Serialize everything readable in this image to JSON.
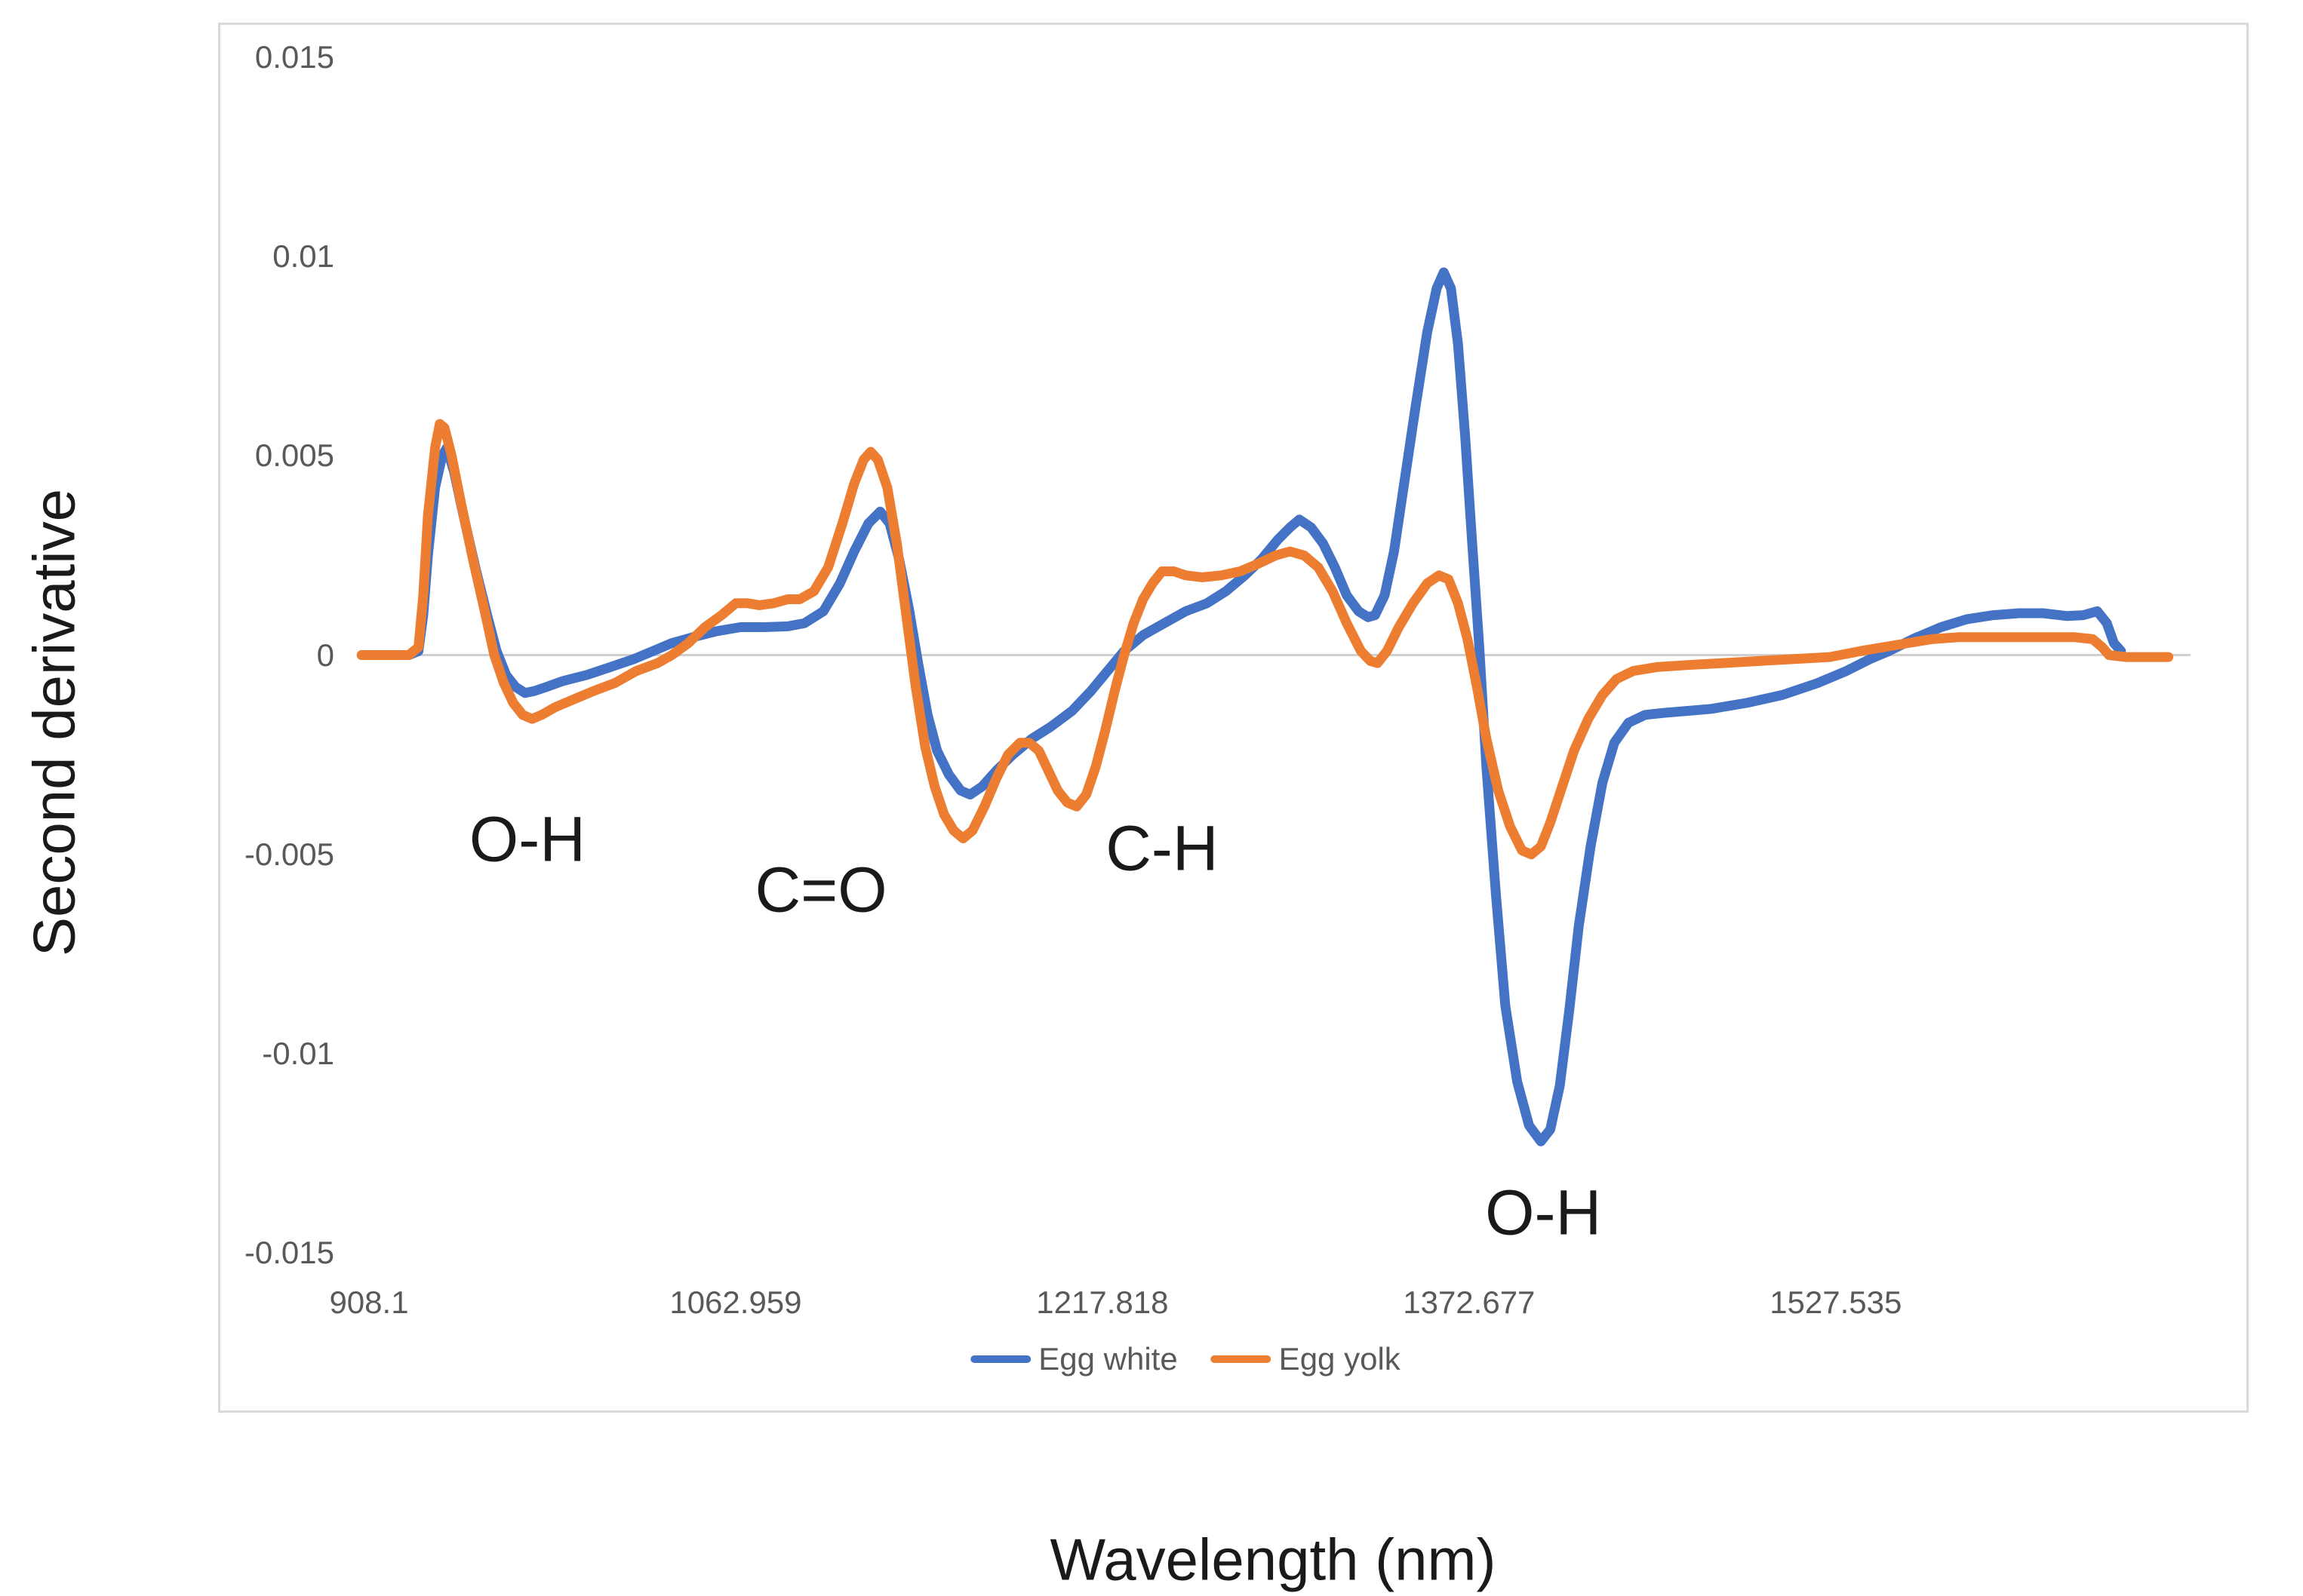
{
  "figure": {
    "y_axis_title": "Second derivative",
    "x_axis_title": "Wavelength (nm)",
    "colors": {
      "egg_white": "#4472C4",
      "egg_yolk": "#ED7D31",
      "zero_gridline": "#d0d0d0",
      "frame_border": "#d9d9d9",
      "tick_text": "#595959",
      "annotation_text": "#1a1a1a"
    }
  },
  "chart_data": {
    "type": "line",
    "title": "",
    "xlabel": "Wavelength (nm)",
    "ylabel": "Second derivative",
    "xlim": [
      905,
      1670
    ],
    "ylim": [
      -0.015,
      0.015
    ],
    "grid": "horizontal-zero-line-only",
    "x_ticks": [
      908.1,
      1062.959,
      1217.818,
      1372.677,
      1527.535
    ],
    "x_tick_labels": [
      "908.1",
      "1062.959",
      "1217.818",
      "1372.677",
      "1527.535"
    ],
    "y_ticks": [
      0.015,
      0.01,
      0.005,
      0,
      -0.005,
      -0.01,
      -0.015
    ],
    "y_tick_labels": [
      "0.015",
      "0.01",
      "0.005",
      "0",
      "-0.005",
      "-0.01",
      "-0.015"
    ],
    "legend": {
      "position": "bottom",
      "entries": [
        "Egg white",
        "Egg yolk"
      ]
    },
    "annotations": [
      {
        "label": "O-H",
        "x": 975,
        "y": -0.00463
      },
      {
        "label": "C=O",
        "x": 1099,
        "y": -0.0059
      },
      {
        "label": "C-H",
        "x": 1243,
        "y": -0.00485
      },
      {
        "label": "O-H",
        "x": 1404,
        "y": -0.014
      }
    ],
    "series": [
      {
        "name": "Egg white",
        "color": "#4472C4",
        "points": [
          [
            905,
            0
          ],
          [
            910,
            0
          ],
          [
            915,
            0
          ],
          [
            920,
            0
          ],
          [
            925,
            0
          ],
          [
            929,
            0.0001
          ],
          [
            931,
            0.001
          ],
          [
            933,
            0.0025
          ],
          [
            936,
            0.0042
          ],
          [
            939,
            0.005
          ],
          [
            941,
            0.0052
          ],
          [
            944,
            0.0046
          ],
          [
            948,
            0.0035
          ],
          [
            953,
            0.0022
          ],
          [
            958,
            0.001
          ],
          [
            962,
            0.0001
          ],
          [
            966,
            -0.0005
          ],
          [
            970,
            -0.0008
          ],
          [
            974,
            -0.00095
          ],
          [
            978,
            -0.0009
          ],
          [
            983,
            -0.0008
          ],
          [
            990,
            -0.00065
          ],
          [
            1000,
            -0.0005
          ],
          [
            1010,
            -0.0003
          ],
          [
            1020,
            -0.0001
          ],
          [
            1028,
            0.0001
          ],
          [
            1036,
            0.0003
          ],
          [
            1045,
            0.00045
          ],
          [
            1055,
            0.0006
          ],
          [
            1065,
            0.0007
          ],
          [
            1075,
            0.0007
          ],
          [
            1085,
            0.00072
          ],
          [
            1092,
            0.0008
          ],
          [
            1100,
            0.0011
          ],
          [
            1107,
            0.0018
          ],
          [
            1113,
            0.0026
          ],
          [
            1119,
            0.0033
          ],
          [
            1124,
            0.0036
          ],
          [
            1128,
            0.0033
          ],
          [
            1132,
            0.0024
          ],
          [
            1136,
            0.0012
          ],
          [
            1140,
            -0.0002
          ],
          [
            1144,
            -0.0015
          ],
          [
            1148,
            -0.0024
          ],
          [
            1153,
            -0.003
          ],
          [
            1158,
            -0.0034
          ],
          [
            1162,
            -0.0035
          ],
          [
            1167,
            -0.0033
          ],
          [
            1173,
            -0.0029
          ],
          [
            1180,
            -0.0025
          ],
          [
            1188,
            -0.0021
          ],
          [
            1196,
            -0.0018
          ],
          [
            1205,
            -0.0014
          ],
          [
            1213,
            -0.0009
          ],
          [
            1220,
            -0.0004
          ],
          [
            1227,
            0.0001
          ],
          [
            1235,
            0.0005
          ],
          [
            1244,
            0.0008
          ],
          [
            1253,
            0.0011
          ],
          [
            1262,
            0.0013
          ],
          [
            1270,
            0.0016
          ],
          [
            1278,
            0.002
          ],
          [
            1285,
            0.0024
          ],
          [
            1292,
            0.0029
          ],
          [
            1297,
            0.0032
          ],
          [
            1301,
            0.0034
          ],
          [
            1306,
            0.0032
          ],
          [
            1311,
            0.0028
          ],
          [
            1316,
            0.0022
          ],
          [
            1321,
            0.0015
          ],
          [
            1326,
            0.0011
          ],
          [
            1330,
            0.00095
          ],
          [
            1333,
            0.001
          ],
          [
            1337,
            0.0015
          ],
          [
            1341,
            0.0026
          ],
          [
            1345,
            0.0042
          ],
          [
            1350,
            0.0062
          ],
          [
            1355,
            0.0081
          ],
          [
            1359,
            0.0092
          ],
          [
            1362,
            0.0096
          ],
          [
            1365,
            0.0092
          ],
          [
            1368,
            0.0078
          ],
          [
            1371,
            0.0055
          ],
          [
            1374,
            0.0028
          ],
          [
            1377,
            0.0002
          ],
          [
            1380,
            -0.0028
          ],
          [
            1384,
            -0.006
          ],
          [
            1388,
            -0.0088
          ],
          [
            1393,
            -0.0107
          ],
          [
            1398,
            -0.0118
          ],
          [
            1403,
            -0.0122
          ],
          [
            1407,
            -0.0119
          ],
          [
            1411,
            -0.0108
          ],
          [
            1415,
            -0.0089
          ],
          [
            1419,
            -0.0068
          ],
          [
            1424,
            -0.0048
          ],
          [
            1429,
            -0.0032
          ],
          [
            1434,
            -0.0022
          ],
          [
            1440,
            -0.0017
          ],
          [
            1447,
            -0.0015
          ],
          [
            1455,
            -0.00145
          ],
          [
            1465,
            -0.0014
          ],
          [
            1475,
            -0.00135
          ],
          [
            1490,
            -0.0012
          ],
          [
            1505,
            -0.001
          ],
          [
            1520,
            -0.0007
          ],
          [
            1532,
            -0.0004
          ],
          [
            1542,
            -0.0001
          ],
          [
            1550,
            0.0001
          ],
          [
            1560,
            0.0004
          ],
          [
            1572,
            0.0007
          ],
          [
            1583,
            0.0009
          ],
          [
            1594,
            0.001
          ],
          [
            1605,
            0.00105
          ],
          [
            1615,
            0.00105
          ],
          [
            1625,
            0.00098
          ],
          [
            1632,
            0.001
          ],
          [
            1638,
            0.0011
          ],
          [
            1642,
            0.0008
          ],
          [
            1645,
            0.0003
          ],
          [
            1648,
            0.0001
          ]
        ]
      },
      {
        "name": "Egg yolk",
        "color": "#ED7D31",
        "points": [
          [
            905,
            0
          ],
          [
            910,
            0
          ],
          [
            915,
            0
          ],
          [
            920,
            0
          ],
          [
            925,
            0
          ],
          [
            929,
            0.0002
          ],
          [
            931,
            0.0015
          ],
          [
            933,
            0.0035
          ],
          [
            936,
            0.0052
          ],
          [
            938,
            0.0058
          ],
          [
            940,
            0.0057
          ],
          [
            943,
            0.005
          ],
          [
            947,
            0.0038
          ],
          [
            952,
            0.0024
          ],
          [
            957,
            0.0011
          ],
          [
            961,
            0
          ],
          [
            965,
            -0.0007
          ],
          [
            969,
            -0.0012
          ],
          [
            973,
            -0.0015
          ],
          [
            977,
            -0.0016
          ],
          [
            981,
            -0.0015
          ],
          [
            987,
            -0.0013
          ],
          [
            995,
            -0.0011
          ],
          [
            1003,
            -0.0009
          ],
          [
            1012,
            -0.0007
          ],
          [
            1021,
            -0.0004
          ],
          [
            1030,
            -0.0002
          ],
          [
            1036,
            0
          ],
          [
            1043,
            0.0003
          ],
          [
            1050,
            0.0007
          ],
          [
            1057,
            0.001
          ],
          [
            1063,
            0.0013
          ],
          [
            1068,
            0.0013
          ],
          [
            1073,
            0.00125
          ],
          [
            1079,
            0.0013
          ],
          [
            1085,
            0.0014
          ],
          [
            1090,
            0.0014
          ],
          [
            1096,
            0.0016
          ],
          [
            1102,
            0.0022
          ],
          [
            1108,
            0.0033
          ],
          [
            1113,
            0.0043
          ],
          [
            1117,
            0.0049
          ],
          [
            1120,
            0.0051
          ],
          [
            1123,
            0.0049
          ],
          [
            1127,
            0.0042
          ],
          [
            1131,
            0.0028
          ],
          [
            1135,
            0.001
          ],
          [
            1139,
            -0.0008
          ],
          [
            1143,
            -0.0023
          ],
          [
            1147,
            -0.0033
          ],
          [
            1151,
            -0.004
          ],
          [
            1155,
            -0.0044
          ],
          [
            1159,
            -0.0046
          ],
          [
            1163,
            -0.0044
          ],
          [
            1168,
            -0.0038
          ],
          [
            1173,
            -0.0031
          ],
          [
            1178,
            -0.0025
          ],
          [
            1183,
            -0.0022
          ],
          [
            1187,
            -0.0022
          ],
          [
            1191,
            -0.0024
          ],
          [
            1195,
            -0.0029
          ],
          [
            1199,
            -0.0034
          ],
          [
            1203,
            -0.0037
          ],
          [
            1207,
            -0.0038
          ],
          [
            1211,
            -0.0035
          ],
          [
            1215,
            -0.0028
          ],
          [
            1219,
            -0.0019
          ],
          [
            1223,
            -0.0009
          ],
          [
            1227,
            0
          ],
          [
            1231,
            0.0008
          ],
          [
            1235,
            0.0014
          ],
          [
            1239,
            0.0018
          ],
          [
            1243,
            0.0021
          ],
          [
            1248,
            0.0021
          ],
          [
            1253,
            0.002
          ],
          [
            1260,
            0.00195
          ],
          [
            1268,
            0.002
          ],
          [
            1276,
            0.0021
          ],
          [
            1284,
            0.0023
          ],
          [
            1291,
            0.0025
          ],
          [
            1297,
            0.0026
          ],
          [
            1303,
            0.0025
          ],
          [
            1309,
            0.0022
          ],
          [
            1315,
            0.0016
          ],
          [
            1321,
            0.0008
          ],
          [
            1327,
            0.0001
          ],
          [
            1331,
            -0.00015
          ],
          [
            1334,
            -0.0002
          ],
          [
            1338,
            0.0001
          ],
          [
            1343,
            0.0007
          ],
          [
            1349,
            0.0013
          ],
          [
            1355,
            0.0018
          ],
          [
            1360,
            0.002
          ],
          [
            1364,
            0.0019
          ],
          [
            1368,
            0.0013
          ],
          [
            1372,
            0.0004
          ],
          [
            1376,
            -0.0008
          ],
          [
            1380,
            -0.0021
          ],
          [
            1385,
            -0.0034
          ],
          [
            1390,
            -0.0043
          ],
          [
            1395,
            -0.0049
          ],
          [
            1399,
            -0.005
          ],
          [
            1403,
            -0.0048
          ],
          [
            1407,
            -0.0042
          ],
          [
            1412,
            -0.0033
          ],
          [
            1417,
            -0.0024
          ],
          [
            1423,
            -0.0016
          ],
          [
            1429,
            -0.001
          ],
          [
            1435,
            -0.0006
          ],
          [
            1442,
            -0.0004
          ],
          [
            1452,
            -0.0003
          ],
          [
            1465,
            -0.00025
          ],
          [
            1480,
            -0.0002
          ],
          [
            1495,
            -0.00015
          ],
          [
            1510,
            -0.0001
          ],
          [
            1525,
            -5e-05
          ],
          [
            1538,
            0.0001
          ],
          [
            1548,
            0.0002
          ],
          [
            1558,
            0.0003
          ],
          [
            1568,
            0.0004
          ],
          [
            1580,
            0.00045
          ],
          [
            1592,
            0.00045
          ],
          [
            1604,
            0.00045
          ],
          [
            1616,
            0.00045
          ],
          [
            1628,
            0.00045
          ],
          [
            1636,
            0.0004
          ],
          [
            1640,
            0.0002
          ],
          [
            1643,
            0
          ],
          [
            1650,
            -5e-05
          ],
          [
            1656,
            -5e-05
          ],
          [
            1662,
            -5e-05
          ],
          [
            1668,
            -5e-05
          ]
        ]
      }
    ]
  }
}
